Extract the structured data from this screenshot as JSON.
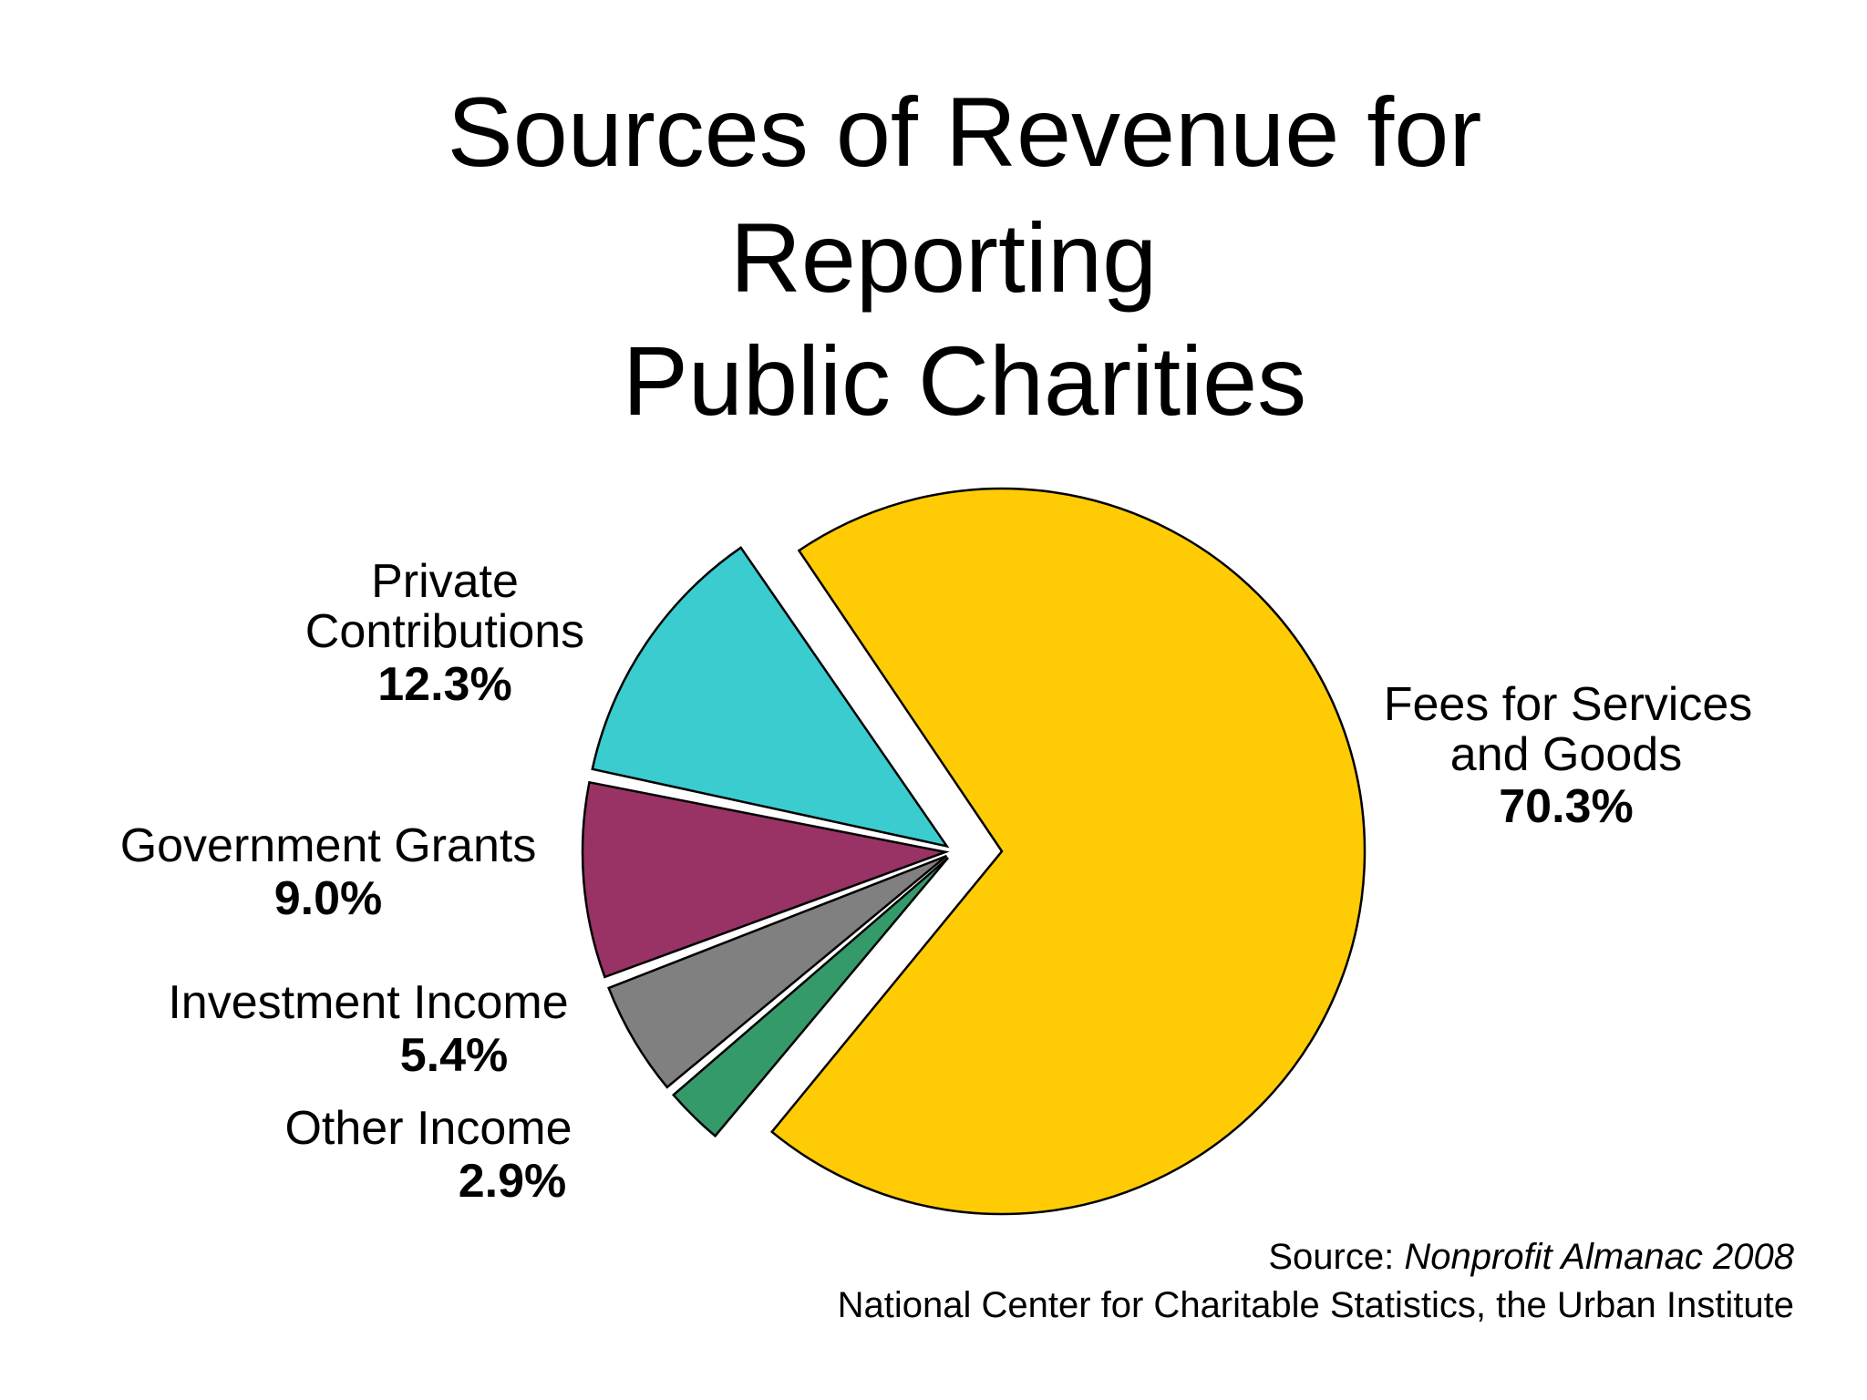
{
  "chart_data": {
    "type": "pie",
    "title_lines": [
      "Sources of Revenue for",
      "Reporting",
      "Public Charities"
    ],
    "slices": [
      {
        "name_lines": [
          "Fees for Services",
          "and Goods"
        ],
        "value": 70.3,
        "value_label": "70.3%",
        "color": "#FFCB05"
      },
      {
        "name_lines": [
          "Other Income"
        ],
        "value": 2.9,
        "value_label": "2.9%",
        "color": "#359A6A"
      },
      {
        "name_lines": [
          "Investment Income"
        ],
        "value": 5.4,
        "value_label": "5.4%",
        "color": "#808080"
      },
      {
        "name_lines": [
          "Government Grants"
        ],
        "value": 9.0,
        "value_label": "9.0%",
        "color": "#993366"
      },
      {
        "name_lines": [
          "Private",
          "Contributions"
        ],
        "value": 12.3,
        "value_label": "12.3%",
        "color": "#3BCCCF"
      }
    ],
    "source": {
      "prefix": "Source: ",
      "publication": "Nonprofit Almanac 2008",
      "line2": "National Center for Charitable Statistics, the Urban Institute"
    }
  }
}
